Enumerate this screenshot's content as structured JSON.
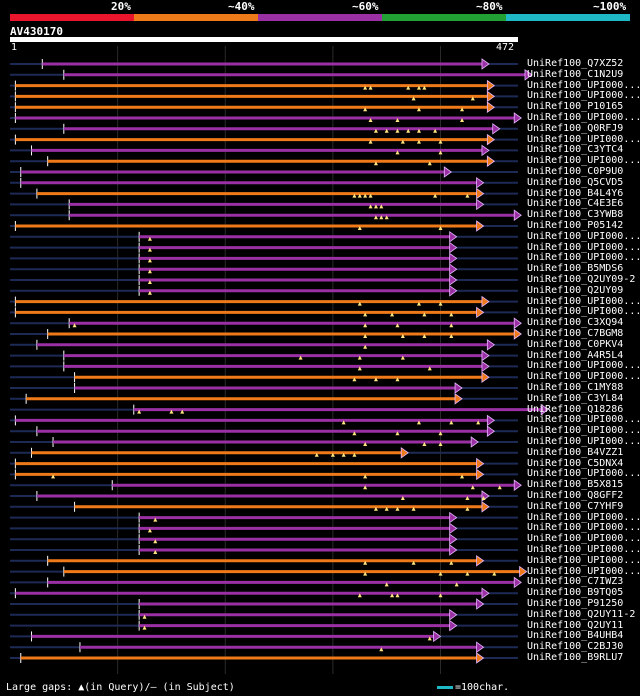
{
  "chart_data": {
    "type": "alignment_overview",
    "query": {
      "name": "AV430170",
      "length": 472,
      "start_label": "1",
      "end_label": "472"
    },
    "identity_legend": [
      {
        "label": "20%",
        "color": "#e8152c"
      },
      {
        "label": "~40%",
        "color": "#ef7a1a"
      },
      {
        "label": "~60%",
        "color": "#9b2fa4"
      },
      {
        "label": "~80%",
        "color": "#22a033"
      },
      {
        "label": "~100%",
        "color": "#1fb8c6"
      }
    ],
    "hits": [
      {
        "name": "UniRef100_Q7XZ52",
        "start": 30,
        "end": 445,
        "band": "~60%",
        "gaps": []
      },
      {
        "name": "UniRef100_C1N2U9",
        "start": 50,
        "end": 485,
        "band": "~60%",
        "gaps": []
      },
      {
        "name": "UniRef100_UPI000...",
        "start": 5,
        "end": 450,
        "band": "~40%",
        "gaps": [
          330,
          335,
          370,
          380,
          385
        ]
      },
      {
        "name": "UniRef100_UPI000...",
        "start": 5,
        "end": 450,
        "band": "~40%",
        "gaps": [
          375,
          430
        ]
      },
      {
        "name": "UniRef100_P10165",
        "start": 5,
        "end": 450,
        "band": "~40%",
        "gaps": [
          330,
          380,
          420
        ]
      },
      {
        "name": "UniRef100_UPI000...",
        "start": 5,
        "end": 475,
        "band": "~60%",
        "gaps": [
          335,
          360,
          420
        ]
      },
      {
        "name": "UniRef100_Q0RFJ9",
        "start": 50,
        "end": 455,
        "band": "~60%",
        "gaps": [
          340,
          350,
          360,
          370,
          380,
          395
        ]
      },
      {
        "name": "UniRef100_UPI000...",
        "start": 5,
        "end": 450,
        "band": "~40%",
        "gaps": [
          335,
          365,
          380,
          400
        ]
      },
      {
        "name": "UniRef100_C3YTC4",
        "start": 20,
        "end": 445,
        "band": "~60%",
        "gaps": [
          360,
          400
        ]
      },
      {
        "name": "UniRef100_UPI000...",
        "start": 35,
        "end": 450,
        "band": "~40%",
        "gaps": [
          340,
          390
        ]
      },
      {
        "name": "UniRef100_C0P9U0",
        "start": 10,
        "end": 410,
        "band": "~60%",
        "gaps": []
      },
      {
        "name": "UniRef100_Q5CVD5",
        "start": 10,
        "end": 440,
        "band": "~60%",
        "gaps": []
      },
      {
        "name": "UniRef100_B4L4Y6",
        "start": 25,
        "end": 440,
        "band": "~40%",
        "gaps": [
          320,
          325,
          330,
          335,
          395,
          425
        ]
      },
      {
        "name": "UniRef100_C4E3E6",
        "start": 55,
        "end": 440,
        "band": "~60%",
        "gaps": [
          335,
          340,
          345
        ]
      },
      {
        "name": "UniRef100_C3YWB8",
        "start": 55,
        "end": 475,
        "band": "~60%",
        "gaps": [
          340,
          345,
          350
        ]
      },
      {
        "name": "UniRef100_P05142",
        "start": 5,
        "end": 440,
        "band": "~40%",
        "gaps": [
          325,
          400
        ]
      },
      {
        "name": "UniRef100_UPI000...",
        "start": 120,
        "end": 415,
        "band": "~60%",
        "gaps": [
          130
        ]
      },
      {
        "name": "UniRef100_UPI000...",
        "start": 120,
        "end": 415,
        "band": "~60%",
        "gaps": [
          130
        ]
      },
      {
        "name": "UniRef100_UPI000...",
        "start": 120,
        "end": 415,
        "band": "~60%",
        "gaps": [
          130
        ]
      },
      {
        "name": "UniRef100_B5MDS6",
        "start": 120,
        "end": 415,
        "band": "~60%",
        "gaps": [
          130
        ]
      },
      {
        "name": "UniRef100_Q2UY09-2",
        "start": 120,
        "end": 415,
        "band": "~60%",
        "gaps": [
          130
        ]
      },
      {
        "name": "UniRef100_Q2UY09",
        "start": 120,
        "end": 415,
        "band": "~60%",
        "gaps": [
          130
        ]
      },
      {
        "name": "UniRef100_UPI000...",
        "start": 5,
        "end": 445,
        "band": "~40%",
        "gaps": [
          325,
          380,
          400
        ]
      },
      {
        "name": "UniRef100_UPI000...",
        "start": 5,
        "end": 440,
        "band": "~40%",
        "gaps": [
          330,
          355,
          385,
          410
        ]
      },
      {
        "name": "UniRef100_C3XQ94",
        "start": 55,
        "end": 475,
        "band": "~60%",
        "gaps": [
          60,
          330,
          360,
          410
        ]
      },
      {
        "name": "UniRef100_C7BGM8",
        "start": 35,
        "end": 475,
        "band": "~40%",
        "gaps": [
          330,
          365,
          385,
          410
        ]
      },
      {
        "name": "UniRef100_C0PKV4",
        "start": 25,
        "end": 450,
        "band": "~60%",
        "gaps": [
          330
        ]
      },
      {
        "name": "UniRef100_A4R5L4",
        "start": 50,
        "end": 445,
        "band": "~60%",
        "gaps": [
          270,
          325,
          365
        ]
      },
      {
        "name": "UniRef100_UPI000...",
        "start": 50,
        "end": 445,
        "band": "~60%",
        "gaps": [
          325,
          390
        ]
      },
      {
        "name": "UniRef100_UPI000...",
        "start": 60,
        "end": 445,
        "band": "~40%",
        "gaps": [
          320,
          340,
          360
        ]
      },
      {
        "name": "UniRef100_C1MY88",
        "start": 60,
        "end": 420,
        "band": "~60%",
        "gaps": []
      },
      {
        "name": "UniRef100_C3YL84",
        "start": 15,
        "end": 420,
        "band": "~40%",
        "gaps": []
      },
      {
        "name": "UniRef100_Q18286",
        "start": 115,
        "end": 500,
        "band": "~60%",
        "gaps": [
          120,
          150,
          160
        ]
      },
      {
        "name": "UniRef100_UPI000...",
        "start": 5,
        "end": 450,
        "band": "~60%",
        "gaps": [
          310,
          380,
          410,
          435
        ]
      },
      {
        "name": "UniRef100_UPI000...",
        "start": 25,
        "end": 450,
        "band": "~60%",
        "gaps": [
          320,
          360,
          400
        ]
      },
      {
        "name": "UniRef100_UPI000...",
        "start": 40,
        "end": 435,
        "band": "~60%",
        "gaps": [
          330,
          385,
          400
        ]
      },
      {
        "name": "UniRef100_B4VZZ1",
        "start": 20,
        "end": 370,
        "band": "~40%",
        "gaps": [
          285,
          300,
          310,
          320
        ]
      },
      {
        "name": "UniRef100_C5DNX4",
        "start": 5,
        "end": 440,
        "band": "~40%",
        "gaps": []
      },
      {
        "name": "UniRef100_UPI000...",
        "start": 5,
        "end": 440,
        "band": "~40%",
        "gaps": [
          40,
          330,
          420
        ]
      },
      {
        "name": "UniRef100_B5X815",
        "start": 95,
        "end": 475,
        "band": "~60%",
        "gaps": [
          330,
          430,
          455
        ]
      },
      {
        "name": "UniRef100_Q8GFF2",
        "start": 25,
        "end": 445,
        "band": "~60%",
        "gaps": [
          365,
          425,
          440
        ]
      },
      {
        "name": "UniRef100_C7YHF9",
        "start": 60,
        "end": 445,
        "band": "~40%",
        "gaps": [
          340,
          350,
          360,
          375,
          425
        ]
      },
      {
        "name": "UniRef100_UPI000...",
        "start": 120,
        "end": 415,
        "band": "~60%",
        "gaps": [
          135
        ]
      },
      {
        "name": "UniRef100_UPI000...",
        "start": 120,
        "end": 415,
        "band": "~60%",
        "gaps": [
          130
        ]
      },
      {
        "name": "UniRef100_UPI000...",
        "start": 120,
        "end": 415,
        "band": "~60%",
        "gaps": [
          135
        ]
      },
      {
        "name": "UniRef100_UPI000...",
        "start": 120,
        "end": 415,
        "band": "~60%",
        "gaps": [
          135
        ]
      },
      {
        "name": "UniRef100_UPI000...",
        "start": 35,
        "end": 440,
        "band": "~40%",
        "gaps": [
          330,
          375,
          410
        ]
      },
      {
        "name": "UniRef100_UPI000...",
        "start": 50,
        "end": 480,
        "band": "~40%",
        "gaps": [
          330,
          400,
          425,
          450
        ]
      },
      {
        "name": "UniRef100_C7IWZ3",
        "start": 35,
        "end": 475,
        "band": "~60%",
        "gaps": [
          350,
          415
        ]
      },
      {
        "name": "UniRef100_B9TQ05",
        "start": 5,
        "end": 445,
        "band": "~60%",
        "gaps": [
          325,
          355,
          360,
          400
        ]
      },
      {
        "name": "UniRef100_P91250",
        "start": 120,
        "end": 440,
        "band": "~60%",
        "gaps": []
      },
      {
        "name": "UniRef100_Q2UY11-2",
        "start": 120,
        "end": 415,
        "band": "~60%",
        "gaps": [
          125
        ]
      },
      {
        "name": "UniRef100_Q2UY11",
        "start": 120,
        "end": 415,
        "band": "~60%",
        "gaps": [
          125
        ]
      },
      {
        "name": "UniRef100_B4UHB4",
        "start": 20,
        "end": 400,
        "band": "~60%",
        "gaps": [
          390
        ]
      },
      {
        "name": "UniRef100_C2BJ30",
        "start": 65,
        "end": 440,
        "band": "~60%",
        "gaps": [
          345
        ]
      },
      {
        "name": "UniRef100_B9RLU7",
        "start": 10,
        "end": 440,
        "band": "~40%",
        "gaps": []
      }
    ]
  },
  "footer": {
    "gaps_legend": "Large gaps: ▲(in Query)/— (in Subject)",
    "scale_legend": "=100char."
  }
}
